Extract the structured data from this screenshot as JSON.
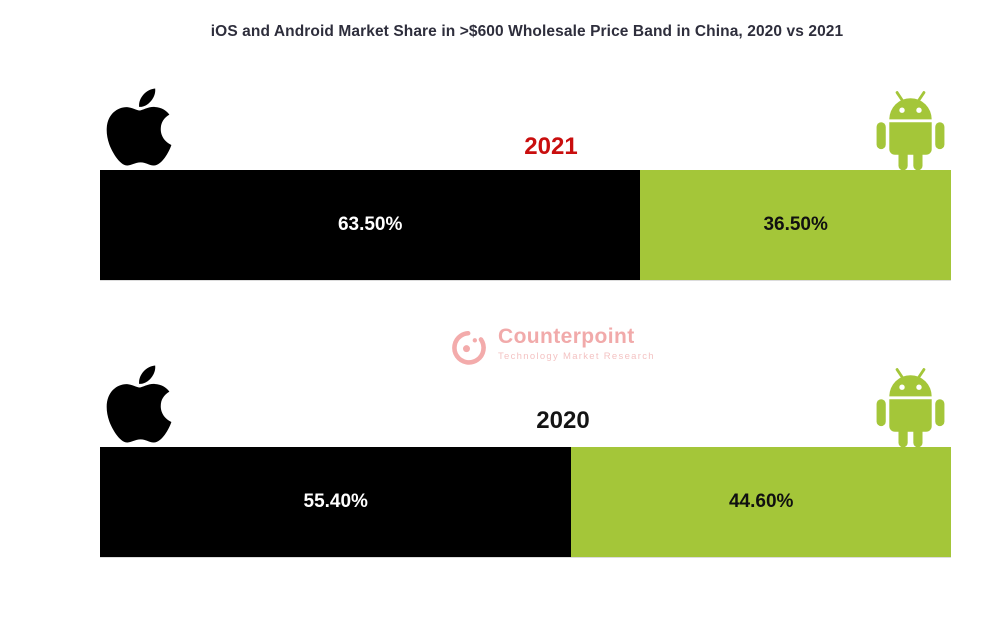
{
  "title": "iOS and Android Market Share in >$600 Wholesale Price Band in China, 2020 vs 2021",
  "watermark": {
    "brand": "Counterpoint",
    "tagline": "Technology Market Research"
  },
  "colors": {
    "ios_black": "#000000",
    "android_green": "#a4c639",
    "year_2021_red": "#c90e0e",
    "year_2020_black": "#141414",
    "title_text": "#2e2e3c",
    "watermark_pink": "#f0a3a3"
  },
  "chart_data": [
    {
      "type": "bar",
      "orientation": "horizontal",
      "stacked": true,
      "year_label": "2021",
      "categories": [
        "iOS",
        "Android"
      ],
      "series": [
        {
          "name": "iOS",
          "value": 63.5,
          "label": "63.50%"
        },
        {
          "name": "Android",
          "value": 36.5,
          "label": "36.50%"
        }
      ],
      "xlim": [
        0,
        100
      ],
      "legend": "icons (Apple left, Android right)",
      "grid": false
    },
    {
      "type": "bar",
      "orientation": "horizontal",
      "stacked": true,
      "year_label": "2020",
      "categories": [
        "iOS",
        "Android"
      ],
      "series": [
        {
          "name": "iOS",
          "value": 55.4,
          "label": "55.40%"
        },
        {
          "name": "Android",
          "value": 44.6,
          "label": "44.60%"
        }
      ],
      "xlim": [
        0,
        100
      ],
      "legend": "icons (Apple left, Android right)",
      "grid": false
    }
  ]
}
